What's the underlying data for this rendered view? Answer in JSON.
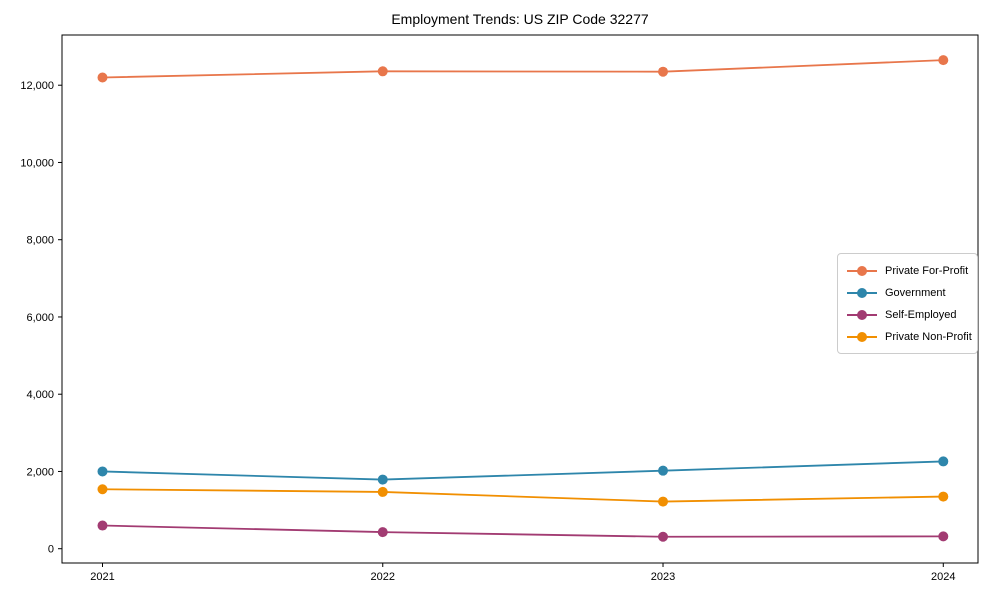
{
  "chart_data": {
    "type": "line",
    "title": "Employment Trends: US ZIP Code 32277",
    "categories": [
      "2021",
      "2022",
      "2023",
      "2024"
    ],
    "series": [
      {
        "name": "Private For-Profit",
        "color": "#E8764B",
        "values": [
          12200,
          12360,
          12350,
          12650
        ]
      },
      {
        "name": "Government",
        "color": "#2E86AB",
        "values": [
          2000,
          1790,
          2020,
          2260
        ]
      },
      {
        "name": "Self-Employed",
        "color": "#A23B72",
        "values": [
          600,
          430,
          310,
          320
        ]
      },
      {
        "name": "Private Non-Profit",
        "color": "#F18F01",
        "values": [
          1540,
          1470,
          1220,
          1350
        ]
      }
    ],
    "xlabel": "",
    "ylabel": "",
    "ylim": [
      -370,
      13300
    ],
    "y_ticks": [
      0,
      2000,
      4000,
      6000,
      8000,
      10000,
      12000
    ],
    "y_tick_labels": [
      "0",
      "2,000",
      "4,000",
      "6,000",
      "8,000",
      "10,000",
      "12,000"
    ],
    "grid": "off",
    "legend_position": "center-right",
    "axis_color": "#000000",
    "background_color": "#ffffff"
  }
}
